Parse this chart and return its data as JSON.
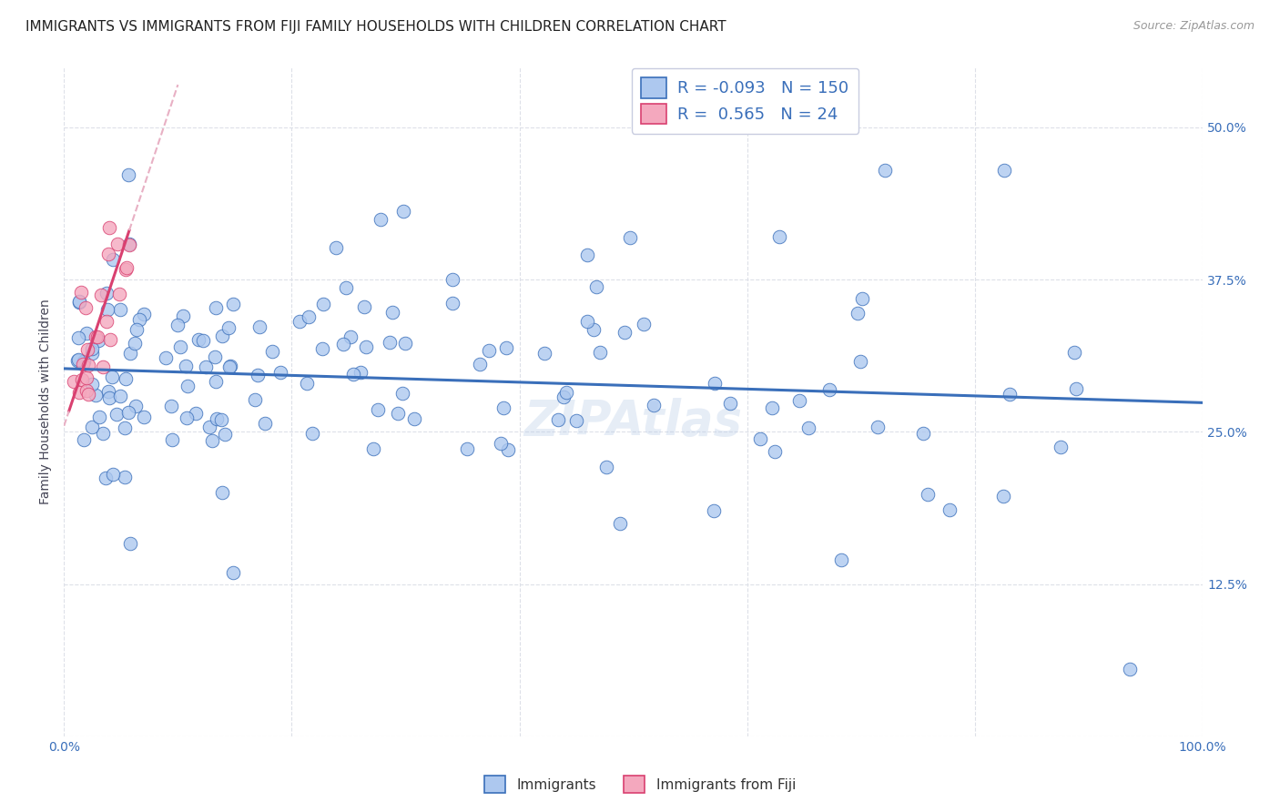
{
  "title": "IMMIGRANTS VS IMMIGRANTS FROM FIJI FAMILY HOUSEHOLDS WITH CHILDREN CORRELATION CHART",
  "source": "Source: ZipAtlas.com",
  "ylabel": "Family Households with Children",
  "legend_label_1": "Immigrants",
  "legend_label_2": "Immigrants from Fiji",
  "R1": -0.093,
  "N1": 150,
  "R2": 0.565,
  "N2": 24,
  "color_blue": "#adc8ef",
  "color_pink": "#f4a8be",
  "line_blue": "#3a6fba",
  "line_pink": "#d94070",
  "line_dashed": "#e8b0c4",
  "background": "#ffffff",
  "grid_color": "#dde0e8",
  "watermark": "ZIPAtlas",
  "title_fontsize": 11,
  "axis_label_fontsize": 10,
  "tick_fontsize": 10,
  "legend_fontsize": 13,
  "blue_intercept": 0.302,
  "blue_slope": -0.028,
  "pink_intercept": 0.255,
  "pink_slope": 2.8
}
